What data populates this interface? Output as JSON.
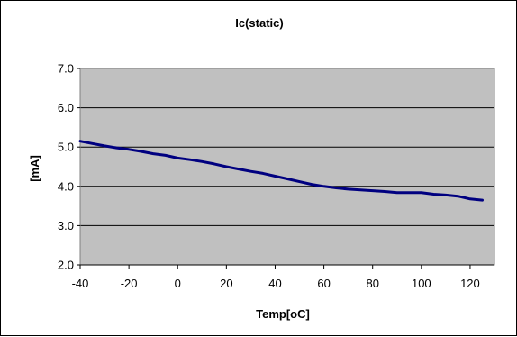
{
  "chart_data": {
    "type": "line",
    "title": "Ic(static)",
    "xlabel": "Temp[oC]",
    "ylabel": "[mA]",
    "xlim": [
      -40,
      130
    ],
    "ylim": [
      2.0,
      7.0
    ],
    "xticks": [
      -40,
      -20,
      0,
      20,
      40,
      60,
      80,
      100,
      120
    ],
    "xtick_labels": [
      "-40",
      "-20",
      "0",
      "20",
      "40",
      "60",
      "80",
      "100",
      "120"
    ],
    "yticks": [
      2.0,
      3.0,
      4.0,
      5.0,
      6.0,
      7.0
    ],
    "ytick_labels": [
      "2.0",
      "3.0",
      "4.0",
      "5.0",
      "6.0",
      "7.0"
    ],
    "grid": "horizontal",
    "legend": "none",
    "series": [
      {
        "color": "#000080",
        "x": [
          -40,
          -35,
          -30,
          -25,
          -20,
          -15,
          -10,
          -5,
          0,
          5,
          10,
          15,
          20,
          25,
          30,
          35,
          40,
          45,
          50,
          55,
          60,
          65,
          70,
          75,
          80,
          85,
          90,
          95,
          100,
          105,
          110,
          115,
          120,
          125
        ],
        "y": [
          5.15,
          5.09,
          5.03,
          4.98,
          4.94,
          4.89,
          4.83,
          4.79,
          4.72,
          4.68,
          4.63,
          4.57,
          4.5,
          4.44,
          4.38,
          4.33,
          4.26,
          4.19,
          4.12,
          4.05,
          4.0,
          3.96,
          3.93,
          3.91,
          3.89,
          3.87,
          3.84,
          3.84,
          3.84,
          3.8,
          3.78,
          3.75,
          3.68,
          3.65
        ]
      }
    ],
    "colors": {
      "plot_background": "#C0C0C0",
      "grid": "#000000",
      "frame": "#808080"
    }
  }
}
